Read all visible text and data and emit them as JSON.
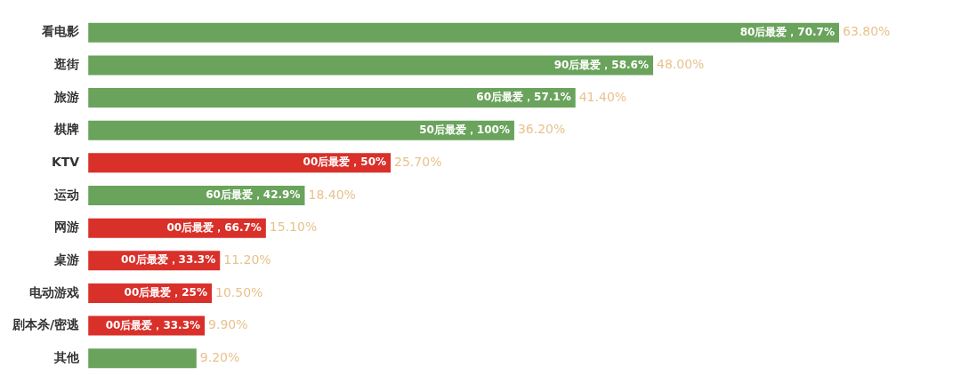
{
  "chart_data": {
    "type": "bar",
    "orientation": "horizontal",
    "categories": [
      "看电影",
      "逛街",
      "旅游",
      "棋牌",
      "KTV",
      "运动",
      "网游",
      "桌游",
      "电动游戏",
      "剧本杀/密逃",
      "其他"
    ],
    "values": [
      63.8,
      48.0,
      41.4,
      36.2,
      25.7,
      18.4,
      15.1,
      11.2,
      10.5,
      9.9,
      9.2
    ],
    "colors": [
      "#6aa35c",
      "#6aa35c",
      "#6aa35c",
      "#6aa35c",
      "#d9302a",
      "#6aa35c",
      "#d9302a",
      "#d9302a",
      "#d9302a",
      "#d9302a",
      "#6aa35c"
    ],
    "value_labels": [
      "63.80%",
      "48.00%",
      "41.40%",
      "36.20%",
      "25.70%",
      "18.40%",
      "15.10%",
      "11.20%",
      "10.50%",
      "9.90%",
      "9.20%"
    ],
    "tick_labels": "y",
    "grid": false,
    "legend": false,
    "annotations": [
      {
        "text": "80后最爱，70.7%",
        "x": 63.8,
        "y": "看电影"
      },
      {
        "text": "90后最爱，58.6%",
        "x": 48.0,
        "y": "逛街"
      },
      {
        "text": "60后最爱，57.1%",
        "x": 41.4,
        "y": "旅游"
      },
      {
        "text": "50后最爱，100%",
        "x": 36.2,
        "y": "棋牌"
      },
      {
        "text": "00后最爱，50%",
        "x": 25.7,
        "y": "KTV"
      },
      {
        "text": "60后最爱，42.9%",
        "x": 18.4,
        "y": "运动"
      },
      {
        "text": "00后最爱，66.7%",
        "x": 15.1,
        "y": "网游"
      },
      {
        "text": "00后最爱，33.3%",
        "x": 11.2,
        "y": "桌游"
      },
      {
        "text": "00后最爱，25%",
        "x": 10.5,
        "y": "电动游戏"
      },
      {
        "text": "00后最爱，33.3%",
        "x": 9.9,
        "y": "剧本杀/密逃"
      }
    ]
  }
}
